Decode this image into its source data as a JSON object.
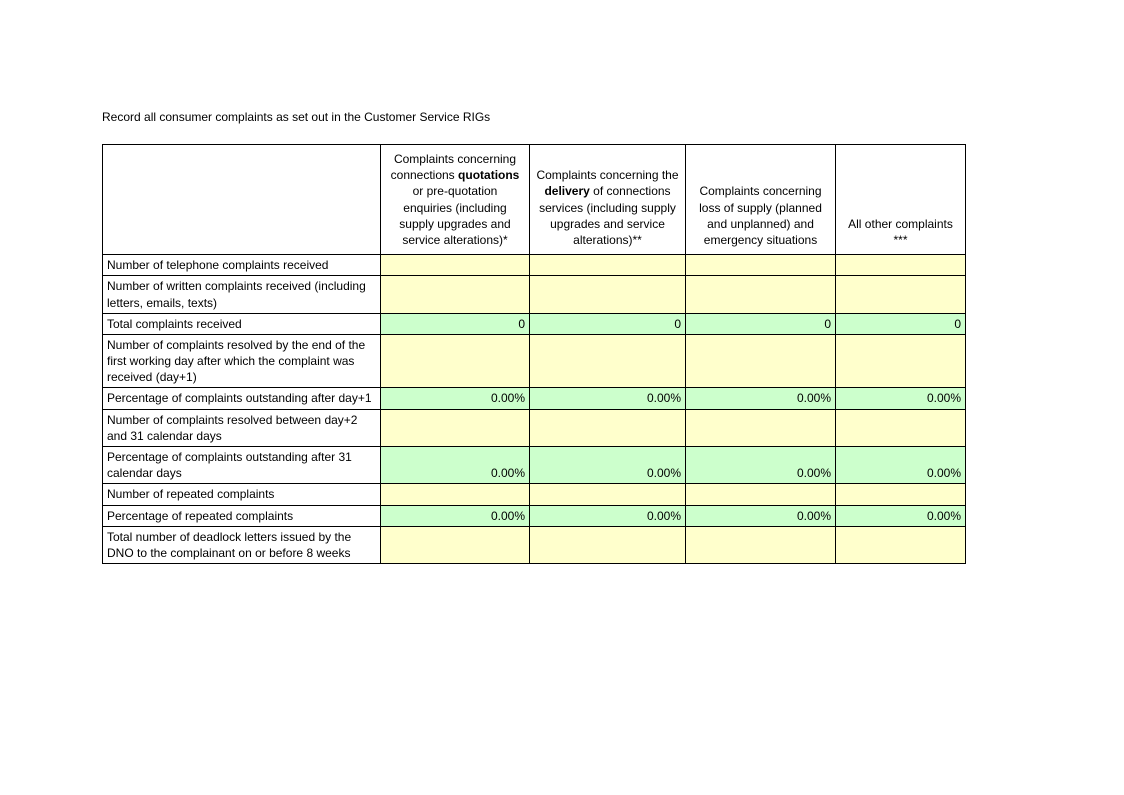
{
  "title": "Record all consumer complaints as set out in the Customer Service RIGs",
  "columns": {
    "c1": {
      "pre": "Complaints concerning connections ",
      "bold": "quotations",
      "post": " or pre-quotation enquiries (including supply upgrades and service alterations)*"
    },
    "c2": {
      "pre": "Complaints concerning the ",
      "bold": "delivery",
      "post": " of connections services (including supply upgrades and service alterations)**"
    },
    "c3": {
      "text": "Complaints concerning loss of supply (planned and unplanned) and emergency situations"
    },
    "c4": {
      "text": "All other complaints ***"
    }
  },
  "rows": [
    {
      "label": "Number of telephone complaints received",
      "style": "yellow",
      "v1": "",
      "v2": "",
      "v3": "",
      "v4": ""
    },
    {
      "label": "Number of written complaints received (including letters, emails, texts)",
      "style": "yellow",
      "v1": "",
      "v2": "",
      "v3": "",
      "v4": ""
    },
    {
      "label": "Total complaints received",
      "style": "green",
      "v1": "0",
      "v2": "0",
      "v3": "0",
      "v4": "0"
    },
    {
      "label": "Number of complaints resolved by the end of the first working day after which the complaint was received (day+1)",
      "style": "yellow",
      "v1": "",
      "v2": "",
      "v3": "",
      "v4": ""
    },
    {
      "label": "Percentage of complaints outstanding after day+1",
      "style": "green",
      "v1": "0.00%",
      "v2": "0.00%",
      "v3": "0.00%",
      "v4": "0.00%"
    },
    {
      "label": "Number of complaints resolved between day+2 and 31 calendar days",
      "style": "yellow",
      "v1": "",
      "v2": "",
      "v3": "",
      "v4": ""
    },
    {
      "label": "Percentage of complaints outstanding after 31 calendar days",
      "style": "green",
      "v1": "0.00%",
      "v2": "0.00%",
      "v3": "0.00%",
      "v4": "0.00%"
    },
    {
      "label": "Number of repeated complaints",
      "style": "yellow",
      "v1": "",
      "v2": "",
      "v3": "",
      "v4": ""
    },
    {
      "label": "Percentage of repeated complaints",
      "style": "green",
      "v1": "0.00%",
      "v2": "0.00%",
      "v3": "0.00%",
      "v4": "0.00%"
    },
    {
      "label": "Total number of deadlock letters issued by the DNO to the complainant on or before 8 weeks",
      "style": "yellow",
      "v1": "",
      "v2": "",
      "v3": "",
      "v4": ""
    }
  ]
}
